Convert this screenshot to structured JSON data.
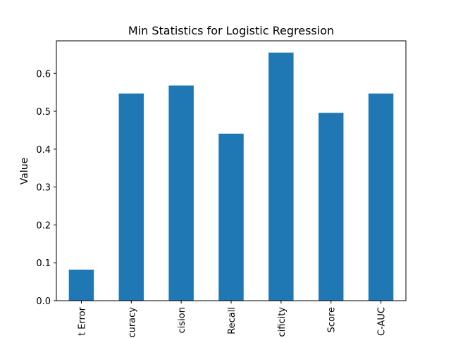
{
  "chart_data": {
    "type": "bar",
    "title": "Min Statistics for Logistic Regression",
    "xlabel": "",
    "ylabel": "Value",
    "categories": [
      "t Error",
      "curacy",
      "cision",
      "Recall",
      "cificity",
      "Score",
      "C-AUC"
    ],
    "values": [
      0.082,
      0.547,
      0.568,
      0.441,
      0.655,
      0.496,
      0.547
    ],
    "ylim": [
      0,
      0.686
    ],
    "yticks": [
      0.0,
      0.1,
      0.2,
      0.3,
      0.4,
      0.5,
      0.6
    ],
    "ytick_labels": [
      "0.0",
      "0.1",
      "0.2",
      "0.3",
      "0.4",
      "0.5",
      "0.6"
    ],
    "bar_color": "#1f77b4",
    "grid": false,
    "legend": "none"
  }
}
